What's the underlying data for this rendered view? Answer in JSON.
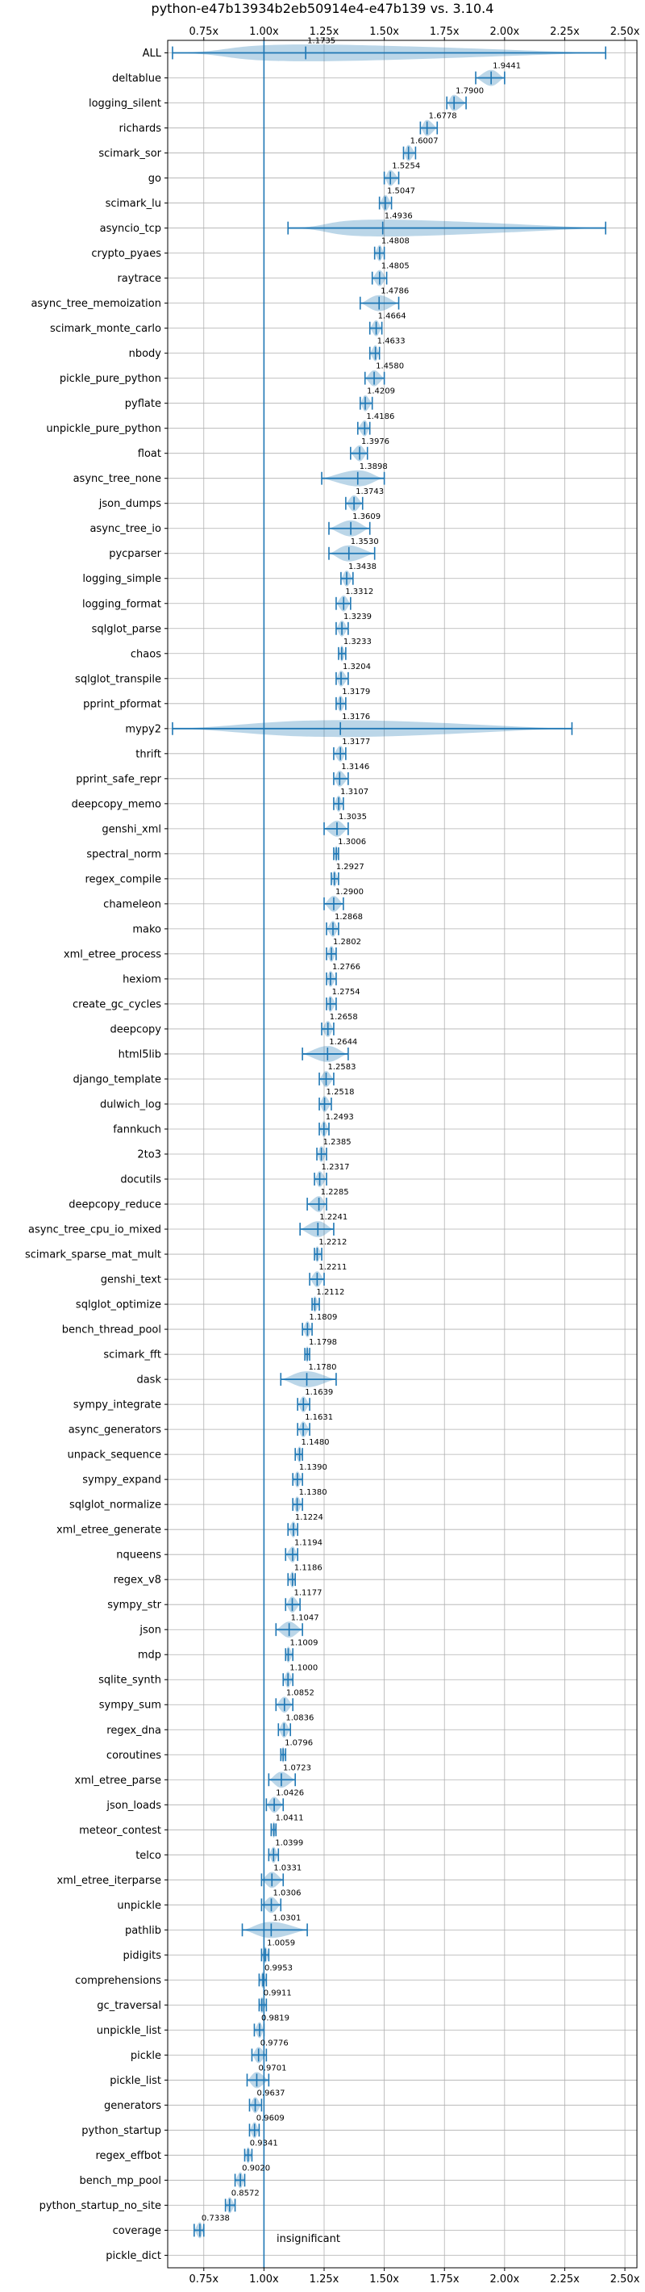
{
  "chart_data": {
    "type": "violin",
    "title": "python-e47b13934b2eb50914e4-e47b139 vs. 3.10.4",
    "xlabel": "",
    "ylabel": "",
    "xlim": [
      0.6,
      2.55
    ],
    "x_ticks": [
      0.75,
      1.0,
      1.25,
      1.5,
      1.75,
      2.0,
      2.25,
      2.5
    ],
    "x_tick_labels": [
      "0.75x",
      "1.00x",
      "1.25x",
      "1.50x",
      "1.75x",
      "2.00x",
      "2.25x",
      "2.50x"
    ],
    "reference_line": 1.0,
    "grid": true,
    "color": "#1f77b4",
    "categories": [
      "ALL",
      "deltablue",
      "logging_silent",
      "richards",
      "scimark_sor",
      "go",
      "scimark_lu",
      "asyncio_tcp",
      "crypto_pyaes",
      "raytrace",
      "async_tree_memoization",
      "scimark_monte_carlo",
      "nbody",
      "pickle_pure_python",
      "pyflate",
      "unpickle_pure_python",
      "float",
      "async_tree_none",
      "json_dumps",
      "async_tree_io",
      "pycparser",
      "logging_simple",
      "logging_format",
      "sqlglot_parse",
      "chaos",
      "sqlglot_transpile",
      "pprint_pformat",
      "mypy2",
      "thrift",
      "pprint_safe_repr",
      "deepcopy_memo",
      "genshi_xml",
      "spectral_norm",
      "regex_compile",
      "chameleon",
      "mako",
      "xml_etree_process",
      "hexiom",
      "create_gc_cycles",
      "deepcopy",
      "html5lib",
      "django_template",
      "dulwich_log",
      "fannkuch",
      "2to3",
      "docutils",
      "deepcopy_reduce",
      "async_tree_cpu_io_mixed",
      "scimark_sparse_mat_mult",
      "genshi_text",
      "sqlglot_optimize",
      "bench_thread_pool",
      "scimark_fft",
      "dask",
      "sympy_integrate",
      "async_generators",
      "unpack_sequence",
      "sympy_expand",
      "sqlglot_normalize",
      "xml_etree_generate",
      "nqueens",
      "regex_v8",
      "sympy_str",
      "json",
      "mdp",
      "sqlite_synth",
      "sympy_sum",
      "regex_dna",
      "coroutines",
      "xml_etree_parse",
      "json_loads",
      "meteor_contest",
      "telco",
      "xml_etree_iterparse",
      "unpickle",
      "pathlib",
      "pidigits",
      "comprehensions",
      "gc_traversal",
      "unpickle_list",
      "pickle",
      "pickle_list",
      "generators",
      "python_startup",
      "regex_effbot",
      "bench_mp_pool",
      "python_startup_no_site",
      "coverage",
      "pickle_dict"
    ],
    "values": [
      1.1735,
      1.9441,
      1.79,
      1.6778,
      1.6007,
      1.5254,
      1.5047,
      1.4936,
      1.4808,
      1.4805,
      1.4786,
      1.4664,
      1.4633,
      1.458,
      1.4209,
      1.4186,
      1.3976,
      1.3898,
      1.3743,
      1.3609,
      1.353,
      1.3438,
      1.3312,
      1.3239,
      1.3233,
      1.3204,
      1.3179,
      1.3176,
      1.3177,
      1.3146,
      1.3107,
      1.3035,
      1.3006,
      1.2927,
      1.29,
      1.2868,
      1.2802,
      1.2766,
      1.2754,
      1.2658,
      1.2644,
      1.2583,
      1.2518,
      1.2493,
      1.2385,
      1.2317,
      1.2285,
      1.2241,
      1.2212,
      1.2211,
      1.2112,
      1.1809,
      1.1798,
      1.178,
      1.1639,
      1.1631,
      1.148,
      1.139,
      1.138,
      1.1224,
      1.1194,
      1.1186,
      1.1177,
      1.1047,
      1.1009,
      1.1,
      1.0852,
      1.0836,
      1.0796,
      1.0723,
      1.0426,
      1.0411,
      1.0399,
      1.0331,
      1.0306,
      1.0301,
      1.0059,
      0.9953,
      0.9911,
      0.9819,
      0.9776,
      0.9701,
      0.9637,
      0.9609,
      0.9341,
      0.902,
      0.8572,
      0.7338,
      null
    ],
    "data_labels": [
      "1.1735",
      "1.9441",
      "1.7900",
      "1.6778",
      "1.6007",
      "1.5254",
      "1.5047",
      "1.4936",
      "1.4808",
      "1.4805",
      "1.4786",
      "1.4664",
      "1.4633",
      "1.4580",
      "1.4209",
      "1.4186",
      "1.3976",
      "1.3898",
      "1.3743",
      "1.3609",
      "1.3530",
      "1.3438",
      "1.3312",
      "1.3239",
      "1.3233",
      "1.3204",
      "1.3179",
      "1.3176",
      "1.3177",
      "1.3146",
      "1.3107",
      "1.3035",
      "1.3006",
      "1.2927",
      "1.2900",
      "1.2868",
      "1.2802",
      "1.2766",
      "1.2754",
      "1.2658",
      "1.2644",
      "1.2583",
      "1.2518",
      "1.2493",
      "1.2385",
      "1.2317",
      "1.2285",
      "1.2241",
      "1.2212",
      "1.2211",
      "1.2112",
      "1.1809",
      "1.1798",
      "1.1780",
      "1.1639",
      "1.1631",
      "1.1480",
      "1.1390",
      "1.1380",
      "1.1224",
      "1.1194",
      "1.1186",
      "1.1177",
      "1.1047",
      "1.1009",
      "1.1000",
      "1.0852",
      "1.0836",
      "1.0796",
      "1.0723",
      "1.0426",
      "1.0411",
      "1.0399",
      "1.0331",
      "1.0306",
      "1.0301",
      "1.0059",
      "0.9953",
      "0.9911",
      "0.9819",
      "0.9776",
      "0.9701",
      "0.9637",
      "0.9609",
      "0.9341",
      "0.9020",
      "0.8572",
      "0.7338",
      ""
    ],
    "ranges": [
      [
        0.62,
        2.42
      ],
      [
        1.88,
        2.0
      ],
      [
        1.76,
        1.84
      ],
      [
        1.65,
        1.72
      ],
      [
        1.58,
        1.63
      ],
      [
        1.5,
        1.56
      ],
      [
        1.48,
        1.53
      ],
      [
        1.1,
        2.42
      ],
      [
        1.46,
        1.5
      ],
      [
        1.45,
        1.51
      ],
      [
        1.4,
        1.56
      ],
      [
        1.44,
        1.49
      ],
      [
        1.44,
        1.48
      ],
      [
        1.42,
        1.5
      ],
      [
        1.4,
        1.45
      ],
      [
        1.39,
        1.44
      ],
      [
        1.36,
        1.43
      ],
      [
        1.24,
        1.5
      ],
      [
        1.34,
        1.41
      ],
      [
        1.27,
        1.44
      ],
      [
        1.27,
        1.46
      ],
      [
        1.32,
        1.37
      ],
      [
        1.3,
        1.36
      ],
      [
        1.3,
        1.35
      ],
      [
        1.31,
        1.34
      ],
      [
        1.3,
        1.35
      ],
      [
        1.3,
        1.34
      ],
      [
        0.62,
        2.28
      ],
      [
        1.29,
        1.34
      ],
      [
        1.29,
        1.35
      ],
      [
        1.29,
        1.33
      ],
      [
        1.25,
        1.35
      ],
      [
        1.29,
        1.31
      ],
      [
        1.28,
        1.31
      ],
      [
        1.25,
        1.33
      ],
      [
        1.26,
        1.31
      ],
      [
        1.26,
        1.3
      ],
      [
        1.26,
        1.3
      ],
      [
        1.26,
        1.3
      ],
      [
        1.24,
        1.29
      ],
      [
        1.16,
        1.35
      ],
      [
        1.23,
        1.29
      ],
      [
        1.23,
        1.28
      ],
      [
        1.23,
        1.27
      ],
      [
        1.22,
        1.26
      ],
      [
        1.21,
        1.26
      ],
      [
        1.18,
        1.26
      ],
      [
        1.15,
        1.29
      ],
      [
        1.21,
        1.24
      ],
      [
        1.19,
        1.25
      ],
      [
        1.2,
        1.23
      ],
      [
        1.16,
        1.2
      ],
      [
        1.17,
        1.19
      ],
      [
        1.07,
        1.3
      ],
      [
        1.14,
        1.19
      ],
      [
        1.14,
        1.19
      ],
      [
        1.13,
        1.16
      ],
      [
        1.12,
        1.16
      ],
      [
        1.12,
        1.16
      ],
      [
        1.1,
        1.14
      ],
      [
        1.09,
        1.14
      ],
      [
        1.1,
        1.13
      ],
      [
        1.09,
        1.15
      ],
      [
        1.05,
        1.16
      ],
      [
        1.09,
        1.12
      ],
      [
        1.08,
        1.12
      ],
      [
        1.05,
        1.12
      ],
      [
        1.06,
        1.11
      ],
      [
        1.07,
        1.09
      ],
      [
        1.02,
        1.13
      ],
      [
        1.01,
        1.08
      ],
      [
        1.03,
        1.05
      ],
      [
        1.02,
        1.06
      ],
      [
        0.99,
        1.08
      ],
      [
        0.99,
        1.07
      ],
      [
        0.91,
        1.18
      ],
      [
        0.99,
        1.02
      ],
      [
        0.98,
        1.01
      ],
      [
        0.98,
        1.01
      ],
      [
        0.96,
        1.0
      ],
      [
        0.95,
        1.01
      ],
      [
        0.93,
        1.02
      ],
      [
        0.94,
        0.99
      ],
      [
        0.94,
        0.98
      ],
      [
        0.92,
        0.95
      ],
      [
        0.88,
        0.92
      ],
      [
        0.84,
        0.88
      ],
      [
        0.71,
        0.75
      ],
      null
    ],
    "annotations": [
      "insignificant"
    ]
  }
}
